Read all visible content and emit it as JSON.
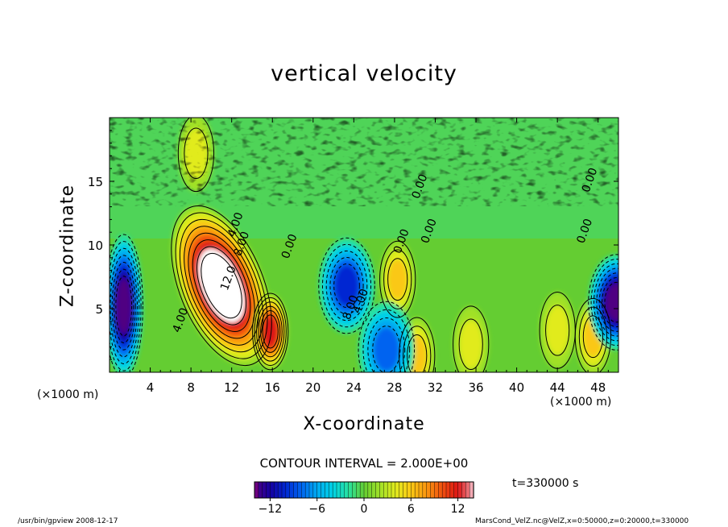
{
  "chart_data": {
    "type": "heatmap",
    "title": "vertical velocity",
    "xlabel": "X-coordinate",
    "ylabel": "Z-coordinate",
    "x_unit_label": "(×1000 m)",
    "x_ticks": [
      4,
      8,
      12,
      16,
      20,
      24,
      28,
      32,
      36,
      40,
      44,
      48
    ],
    "y_ticks": [
      5,
      10,
      15
    ],
    "xlim": [
      0,
      50
    ],
    "ylim": [
      0,
      20
    ],
    "contour_interval": "CONTOUR INTERVAL = 2.000E+00",
    "contour_labels": [
      {
        "text": "4.00",
        "x": 12.7,
        "z": 11.5
      },
      {
        "text": "8.00",
        "x": 13.3,
        "z": 10.0
      },
      {
        "text": "12.0",
        "x": 12.0,
        "z": 7.3
      },
      {
        "text": "4.00",
        "x": 7.3,
        "z": 4.0
      },
      {
        "text": "0.00",
        "x": 18.0,
        "z": 9.8
      },
      {
        "text": "8.00",
        "x": 24.0,
        "z": 5.0
      },
      {
        "text": "4.00",
        "x": 25.0,
        "z": 5.5
      },
      {
        "text": "0.00",
        "x": 29.0,
        "z": 10.2
      },
      {
        "text": "0.00",
        "x": 31.7,
        "z": 11.0
      },
      {
        "text": "0.00",
        "x": 30.8,
        "z": 14.5
      },
      {
        "text": "0.00",
        "x": 47.5,
        "z": 15.0
      },
      {
        "text": "0.00",
        "x": 47.0,
        "z": 11.0
      }
    ],
    "features": [
      {
        "kind": "updraft-max",
        "x": 11.0,
        "z": 6.8,
        "value": 16
      },
      {
        "kind": "updraft",
        "x": 15.8,
        "z": 3.2,
        "value": 12
      },
      {
        "kind": "updraft",
        "x": 28.3,
        "z": 7.3,
        "value": 6
      },
      {
        "kind": "updraft",
        "x": 30.2,
        "z": 1.3,
        "value": 6
      },
      {
        "kind": "updraft",
        "x": 47.5,
        "z": 2.8,
        "value": 6
      },
      {
        "kind": "updraft",
        "x": 44.0,
        "z": 3.3,
        "value": 4
      },
      {
        "kind": "updraft",
        "x": 35.5,
        "z": 2.2,
        "value": 4
      },
      {
        "kind": "updraft",
        "x": 8.5,
        "z": 17.2,
        "value": 4
      },
      {
        "kind": "downdraft-min",
        "x": 1.4,
        "z": 5.2,
        "value": -14
      },
      {
        "kind": "downdraft",
        "x": 49.8,
        "z": 5.5,
        "value": -14
      },
      {
        "kind": "downdraft",
        "x": 23.3,
        "z": 6.8,
        "value": -10
      },
      {
        "kind": "downdraft",
        "x": 27.2,
        "z": 1.8,
        "value": -8
      }
    ],
    "colorbar": {
      "min": -14,
      "max": 14,
      "tick_values": [
        -12,
        -6,
        0,
        6,
        12
      ],
      "tick_labels": [
        "−12",
        "−6",
        "0",
        "6",
        "12"
      ]
    }
  },
  "timestamp": "t=330000 s",
  "footer": {
    "left": "/usr/bin/gpview  2008-12-17",
    "right": "MarsCond_VelZ.nc@VelZ,x=0:50000,z=0:20000,t=330000"
  },
  "colors": {
    "background": "#ffffff",
    "positive_max": "#ffffff",
    "negative_min": "#ffffff",
    "field_zero": "#66cc33"
  }
}
